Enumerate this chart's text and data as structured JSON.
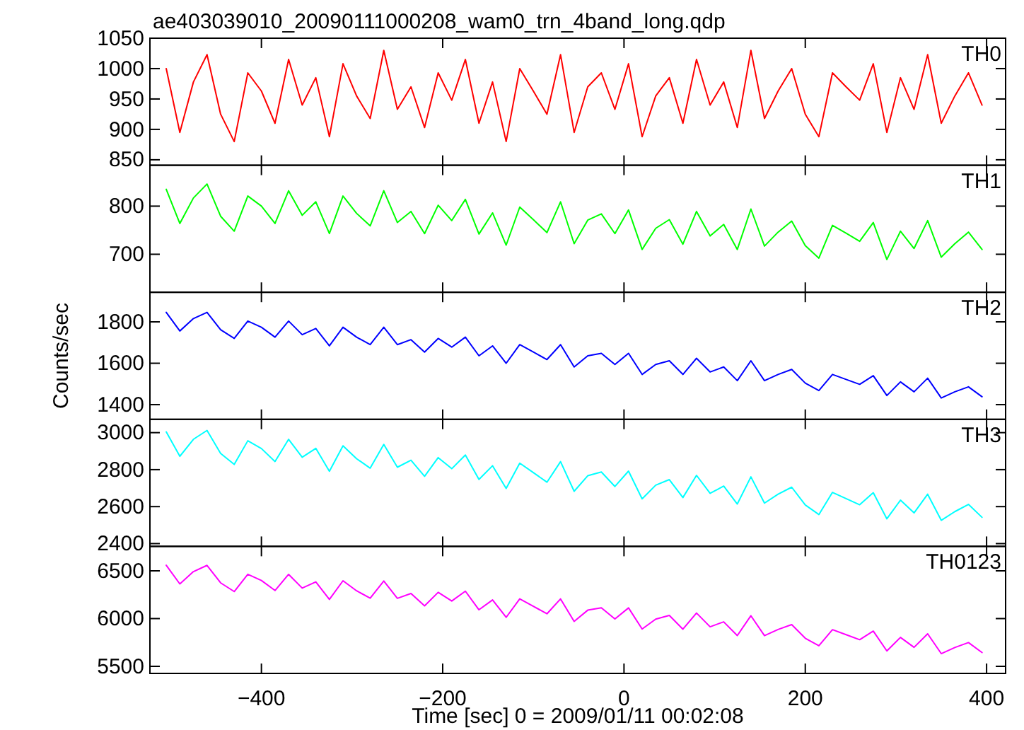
{
  "chart_data": [
    {
      "type": "line",
      "title": "ae403039010_20090111000208_wam0_trn_4band_long.qdp",
      "tick_labels": "y",
      "xlim": [
        -523,
        421
      ],
      "xticks": [
        -400,
        -200,
        0,
        200,
        400
      ],
      "ylim": [
        841,
        1050
      ],
      "yticks": [
        850,
        900,
        950,
        1000,
        1050
      ],
      "x": [
        -505,
        -490,
        -475,
        -460,
        -445,
        -430,
        -415,
        -400,
        -385,
        -370,
        -355,
        -340,
        -325,
        -310,
        -295,
        -280,
        -265,
        -250,
        -235,
        -220,
        -205,
        -190,
        -175,
        -160,
        -145,
        -130,
        -115,
        -100,
        -85,
        -70,
        -55,
        -40,
        -25,
        -10,
        5,
        20,
        35,
        50,
        65,
        80,
        95,
        110,
        125,
        140,
        155,
        170,
        185,
        200,
        215,
        230,
        245,
        260,
        275,
        290,
        305,
        320,
        335,
        350,
        365,
        380,
        395
      ],
      "series": [
        {
          "name": "TH0",
          "color": "#ff0000",
          "values": [
            1000,
            895,
            978,
            1023,
            925,
            880,
            993,
            963,
            910,
            1015,
            940,
            985,
            888,
            1008,
            955,
            918,
            1030,
            933,
            970,
            903,
            993,
            948,
            1015,
            910,
            978,
            880,
            1000,
            963,
            925,
            1023,
            895,
            970,
            993,
            933,
            1008,
            888,
            955,
            985,
            910,
            1015,
            940,
            978,
            903,
            1030,
            918,
            963,
            1000,
            925,
            888,
            993,
            970,
            948,
            1008,
            895,
            985,
            933,
            1023,
            910,
            955,
            993,
            940
          ]
        }
      ]
    },
    {
      "type": "line",
      "tick_labels": "y",
      "xlim": [
        -523,
        421
      ],
      "xticks": [
        -400,
        -200,
        0,
        200,
        400
      ],
      "ylim": [
        621,
        885
      ],
      "yticks": [
        700,
        800
      ],
      "x": [
        -505,
        -490,
        -475,
        -460,
        -445,
        -430,
        -415,
        -400,
        -385,
        -370,
        -355,
        -340,
        -325,
        -310,
        -295,
        -280,
        -265,
        -250,
        -235,
        -220,
        -205,
        -190,
        -175,
        -160,
        -145,
        -130,
        -115,
        -100,
        -85,
        -70,
        -55,
        -40,
        -25,
        -10,
        5,
        20,
        35,
        50,
        65,
        80,
        95,
        110,
        125,
        140,
        155,
        170,
        185,
        200,
        215,
        230,
        245,
        260,
        275,
        290,
        305,
        320,
        335,
        350,
        365,
        380,
        395
      ],
      "series": [
        {
          "name": "TH1",
          "color": "#00ff00",
          "values": [
            835,
            764,
            817,
            846,
            779,
            748,
            821,
            800,
            764,
            832,
            781,
            809,
            743,
            821,
            785,
            759,
            832,
            766,
            789,
            743,
            802,
            770,
            814,
            742,
            786,
            719,
            798,
            772,
            745,
            809,
            722,
            771,
            784,
            743,
            792,
            710,
            754,
            772,
            721,
            789,
            738,
            762,
            710,
            794,
            717,
            746,
            769,
            718,
            692,
            760,
            744,
            727,
            766,
            689,
            748,
            712,
            770,
            694,
            722,
            746,
            710
          ]
        }
      ]
    },
    {
      "type": "line",
      "ylabel": "Counts/sec",
      "tick_labels": "y",
      "xlim": [
        -523,
        421
      ],
      "xticks": [
        -400,
        -200,
        0,
        200,
        400
      ],
      "ylim": [
        1329,
        1943
      ],
      "yticks": [
        1400,
        1600,
        1800
      ],
      "x": [
        -505,
        -490,
        -475,
        -460,
        -445,
        -430,
        -415,
        -400,
        -385,
        -370,
        -355,
        -340,
        -325,
        -310,
        -295,
        -280,
        -265,
        -250,
        -235,
        -220,
        -205,
        -190,
        -175,
        -160,
        -145,
        -130,
        -115,
        -100,
        -85,
        -70,
        -55,
        -40,
        -25,
        -10,
        5,
        20,
        35,
        50,
        65,
        80,
        95,
        110,
        125,
        140,
        155,
        170,
        185,
        200,
        215,
        230,
        245,
        260,
        275,
        290,
        305,
        320,
        335,
        350,
        365,
        380,
        395
      ],
      "series": [
        {
          "name": "TH2",
          "color": "#0000ff",
          "values": [
            1846,
            1756,
            1816,
            1846,
            1762,
            1720,
            1804,
            1774,
            1726,
            1804,
            1738,
            1768,
            1684,
            1774,
            1726,
            1690,
            1774,
            1690,
            1714,
            1654,
            1720,
            1678,
            1726,
            1636,
            1684,
            1600,
            1690,
            1654,
            1618,
            1690,
            1582,
            1636,
            1648,
            1594,
            1648,
            1546,
            1594,
            1612,
            1546,
            1624,
            1558,
            1582,
            1516,
            1612,
            1516,
            1546,
            1570,
            1504,
            1468,
            1546,
            1522,
            1498,
            1540,
            1444,
            1510,
            1462,
            1528,
            1432,
            1462,
            1486,
            1438
          ]
        }
      ]
    },
    {
      "type": "line",
      "tick_labels": "y",
      "xlim": [
        -523,
        421
      ],
      "xticks": [
        -400,
        -200,
        0,
        200,
        400
      ],
      "ylim": [
        2385,
        3072
      ],
      "yticks": [
        2400,
        2600,
        2800,
        3000
      ],
      "x": [
        -505,
        -490,
        -475,
        -460,
        -445,
        -430,
        -415,
        -400,
        -385,
        -370,
        -355,
        -340,
        -325,
        -310,
        -295,
        -280,
        -265,
        -250,
        -235,
        -220,
        -205,
        -190,
        -175,
        -160,
        -145,
        -130,
        -115,
        -100,
        -85,
        -70,
        -55,
        -40,
        -25,
        -10,
        5,
        20,
        35,
        50,
        65,
        80,
        95,
        110,
        125,
        140,
        155,
        170,
        185,
        200,
        215,
        230,
        245,
        260,
        275,
        290,
        305,
        320,
        335,
        350,
        365,
        380,
        395
      ],
      "series": [
        {
          "name": "TH3",
          "color": "#00ffff",
          "values": [
            3004,
            2872,
            2964,
            3012,
            2888,
            2828,
            2956,
            2914,
            2844,
            2964,
            2867,
            2915,
            2791,
            2929,
            2859,
            2808,
            2936,
            2813,
            2851,
            2764,
            2865,
            2805,
            2879,
            2747,
            2821,
            2698,
            2835,
            2784,
            2732,
            2843,
            2683,
            2767,
            2787,
            2709,
            2792,
            2642,
            2716,
            2746,
            2649,
            2769,
            2672,
            2711,
            2614,
            2761,
            2619,
            2667,
            2705,
            2609,
            2557,
            2677,
            2643,
            2610,
            2675,
            2534,
            2635,
            2566,
            2667,
            2526,
            2573,
            2612,
            2542
          ]
        }
      ]
    },
    {
      "type": "line",
      "xlabel": "Time [sec] 0 = 2009/01/11 00:02:08",
      "xlim": [
        -523,
        421
      ],
      "xticks": [
        -400,
        -200,
        0,
        200,
        400
      ],
      "ylim": [
        5426,
        6756
      ],
      "yticks": [
        5500,
        6000,
        6500
      ],
      "x": [
        -505,
        -490,
        -475,
        -460,
        -445,
        -430,
        -415,
        -400,
        -385,
        -370,
        -355,
        -340,
        -325,
        -310,
        -295,
        -280,
        -265,
        -250,
        -235,
        -220,
        -205,
        -190,
        -175,
        -160,
        -145,
        -130,
        -115,
        -100,
        -85,
        -70,
        -55,
        -40,
        -25,
        -10,
        5,
        20,
        35,
        50,
        65,
        80,
        95,
        110,
        125,
        140,
        155,
        170,
        185,
        200,
        215,
        230,
        245,
        260,
        275,
        290,
        305,
        320,
        335,
        350,
        365,
        380,
        395
      ],
      "series": [
        {
          "name": "TH0123",
          "color": "#ff00ff",
          "values": [
            6558,
            6363,
            6492,
            6557,
            6374,
            6283,
            6464,
            6399,
            6294,
            6463,
            6319,
            6384,
            6201,
            6396,
            6291,
            6213,
            6394,
            6212,
            6263,
            6133,
            6275,
            6184,
            6287,
            6092,
            6195,
            6013,
            6207,
            6129,
            6050,
            6206,
            5971,
            6088,
            6113,
            5996,
            6112,
            5891,
            5994,
            6033,
            5889,
            6058,
            5914,
            5966,
            5822,
            6030,
            5821,
            5886,
            5937,
            5794,
            5715,
            5884,
            5831,
            5779,
            5869,
            5661,
            5803,
            5699,
            5841,
            5633,
            5697,
            5749,
            5644
          ]
        }
      ]
    }
  ]
}
